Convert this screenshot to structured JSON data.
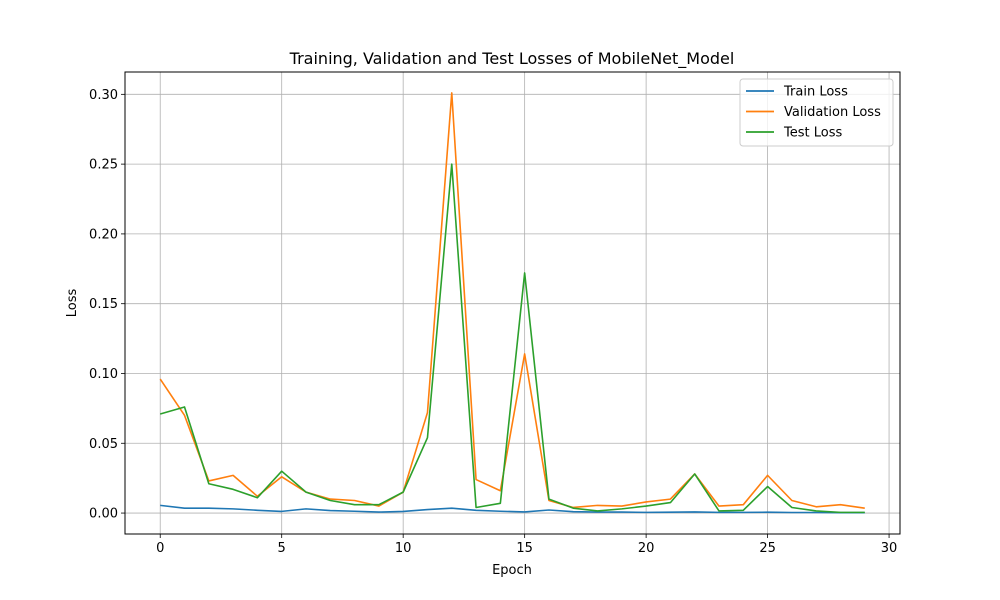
{
  "chart_data": {
    "type": "line",
    "title": "Training, Validation and Test Losses of MobileNet_Model",
    "xlabel": "Epoch",
    "ylabel": "Loss",
    "xlim": [
      -1.45,
      30.45
    ],
    "ylim": [
      -0.015,
      0.316
    ],
    "x_ticks": [
      0,
      5,
      10,
      15,
      20,
      25,
      30
    ],
    "x_tick_labels": [
      "0",
      "5",
      "10",
      "15",
      "20",
      "25",
      "30"
    ],
    "y_ticks": [
      0.0,
      0.05,
      0.1,
      0.15,
      0.2,
      0.25,
      0.3
    ],
    "y_tick_labels": [
      "0.00",
      "0.05",
      "0.10",
      "0.15",
      "0.20",
      "0.25",
      "0.30"
    ],
    "grid": true,
    "legend_position": "top-right",
    "x": [
      0,
      1,
      2,
      3,
      4,
      5,
      6,
      7,
      8,
      9,
      10,
      11,
      12,
      13,
      14,
      15,
      16,
      17,
      18,
      19,
      20,
      21,
      22,
      23,
      24,
      25,
      26,
      27,
      28,
      29
    ],
    "series": [
      {
        "name": "Train Loss",
        "color": "#1f77b4",
        "values": [
          0.0055,
          0.0035,
          0.0035,
          0.003,
          0.002,
          0.0012,
          0.003,
          0.0018,
          0.0013,
          0.0007,
          0.0012,
          0.0025,
          0.0035,
          0.002,
          0.0013,
          0.0008,
          0.0022,
          0.001,
          0.0007,
          0.0007,
          0.0005,
          0.0006,
          0.0008,
          0.0005,
          0.0005,
          0.0006,
          0.0004,
          0.0004,
          0.0003,
          0.0003
        ]
      },
      {
        "name": "Validation Loss",
        "color": "#ff7f0e",
        "values": [
          0.096,
          0.07,
          0.023,
          0.027,
          0.012,
          0.026,
          0.015,
          0.01,
          0.009,
          0.005,
          0.015,
          0.072,
          0.301,
          0.024,
          0.016,
          0.114,
          0.009,
          0.004,
          0.0055,
          0.005,
          0.008,
          0.01,
          0.028,
          0.005,
          0.006,
          0.027,
          0.009,
          0.0045,
          0.006,
          0.0035
        ]
      },
      {
        "name": "Test Loss",
        "color": "#2ca02c",
        "values": [
          0.071,
          0.076,
          0.021,
          0.017,
          0.011,
          0.03,
          0.015,
          0.009,
          0.006,
          0.006,
          0.015,
          0.054,
          0.25,
          0.004,
          0.007,
          0.172,
          0.01,
          0.0035,
          0.0015,
          0.003,
          0.005,
          0.0075,
          0.028,
          0.0015,
          0.002,
          0.019,
          0.004,
          0.0015,
          0.0005,
          0.0005
        ]
      }
    ]
  }
}
